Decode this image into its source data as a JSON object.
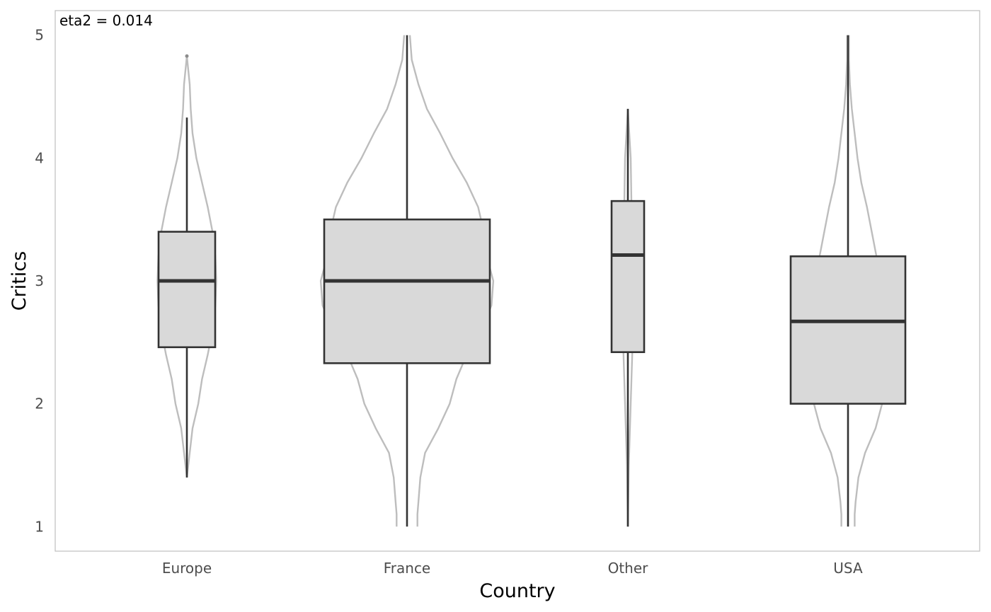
{
  "chart_data": {
    "type": "box",
    "xlabel": "Country",
    "ylabel": "Critics",
    "annotation": "eta2 = 0.014",
    "ylim": [
      0.8,
      5.2
    ],
    "yticks": [
      "1",
      "2",
      "3",
      "4",
      "5"
    ],
    "grid": false,
    "categories": [
      "Europe",
      "France",
      "Other",
      "USA"
    ],
    "box_fill": "#d9d9d9",
    "box_stroke": "#333333",
    "violin_stroke": "#bdbdbd",
    "groups": [
      {
        "name": "Europe",
        "min": 1.4,
        "q1": 2.46,
        "median": 3.0,
        "q3": 3.4,
        "max": 4.33,
        "outliers": [
          4.83
        ],
        "violin": {
          "ymin": 1.4,
          "ymax": 4.83,
          "profile": [
            [
              1.4,
              0.0
            ],
            [
              1.6,
              0.03
            ],
            [
              1.8,
              0.06
            ],
            [
              2.0,
              0.12
            ],
            [
              2.2,
              0.16
            ],
            [
              2.4,
              0.22
            ],
            [
              2.6,
              0.27
            ],
            [
              2.8,
              0.3
            ],
            [
              3.0,
              0.31
            ],
            [
              3.2,
              0.3
            ],
            [
              3.4,
              0.27
            ],
            [
              3.6,
              0.22
            ],
            [
              3.8,
              0.16
            ],
            [
              4.0,
              0.1
            ],
            [
              4.2,
              0.06
            ],
            [
              4.4,
              0.04
            ],
            [
              4.6,
              0.03
            ],
            [
              4.83,
              0.0
            ]
          ]
        }
      },
      {
        "name": "France",
        "min": 1.0,
        "q1": 2.33,
        "median": 3.0,
        "q3": 3.5,
        "max": 5.0,
        "outliers": [],
        "violin": {
          "ymin": 1.0,
          "ymax": 5.0,
          "profile": [
            [
              1.0,
              0.11
            ],
            [
              1.1,
              0.11
            ],
            [
              1.2,
              0.12
            ],
            [
              1.4,
              0.14
            ],
            [
              1.6,
              0.19
            ],
            [
              1.8,
              0.33
            ],
            [
              2.0,
              0.45
            ],
            [
              2.2,
              0.52
            ],
            [
              2.4,
              0.63
            ],
            [
              2.6,
              0.78
            ],
            [
              2.8,
              0.89
            ],
            [
              3.0,
              0.91
            ],
            [
              3.2,
              0.84
            ],
            [
              3.4,
              0.81
            ],
            [
              3.6,
              0.75
            ],
            [
              3.8,
              0.63
            ],
            [
              4.0,
              0.48
            ],
            [
              4.2,
              0.35
            ],
            [
              4.4,
              0.21
            ],
            [
              4.6,
              0.12
            ],
            [
              4.8,
              0.05
            ],
            [
              5.0,
              0.03
            ]
          ]
        }
      },
      {
        "name": "Other",
        "min": 1.0,
        "q1": 2.42,
        "median": 3.21,
        "q3": 3.65,
        "max": 4.4,
        "outliers": [],
        "violin": {
          "ymin": 1.0,
          "ymax": 4.4,
          "profile": [
            [
              1.0,
              0.0
            ],
            [
              1.5,
              0.01
            ],
            [
              2.0,
              0.03
            ],
            [
              2.5,
              0.05
            ],
            [
              3.0,
              0.05
            ],
            [
              3.5,
              0.04
            ],
            [
              4.0,
              0.03
            ],
            [
              4.4,
              0.0
            ]
          ]
        }
      },
      {
        "name": "USA",
        "min": 1.0,
        "q1": 2.0,
        "median": 2.67,
        "q3": 3.2,
        "max": 5.0,
        "outliers": [],
        "violin": {
          "ymin": 1.0,
          "ymax": 5.0,
          "profile": [
            [
              1.0,
              0.07
            ],
            [
              1.1,
              0.07
            ],
            [
              1.2,
              0.08
            ],
            [
              1.4,
              0.11
            ],
            [
              1.6,
              0.18
            ],
            [
              1.8,
              0.29
            ],
            [
              2.0,
              0.36
            ],
            [
              2.2,
              0.4
            ],
            [
              2.4,
              0.43
            ],
            [
              2.6,
              0.44
            ],
            [
              2.8,
              0.42
            ],
            [
              3.0,
              0.36
            ],
            [
              3.2,
              0.3
            ],
            [
              3.4,
              0.25
            ],
            [
              3.6,
              0.2
            ],
            [
              3.8,
              0.14
            ],
            [
              4.0,
              0.1
            ],
            [
              4.2,
              0.07
            ],
            [
              4.4,
              0.04
            ],
            [
              4.6,
              0.02
            ],
            [
              4.8,
              0.01
            ],
            [
              5.0,
              0.01
            ]
          ]
        }
      }
    ]
  }
}
